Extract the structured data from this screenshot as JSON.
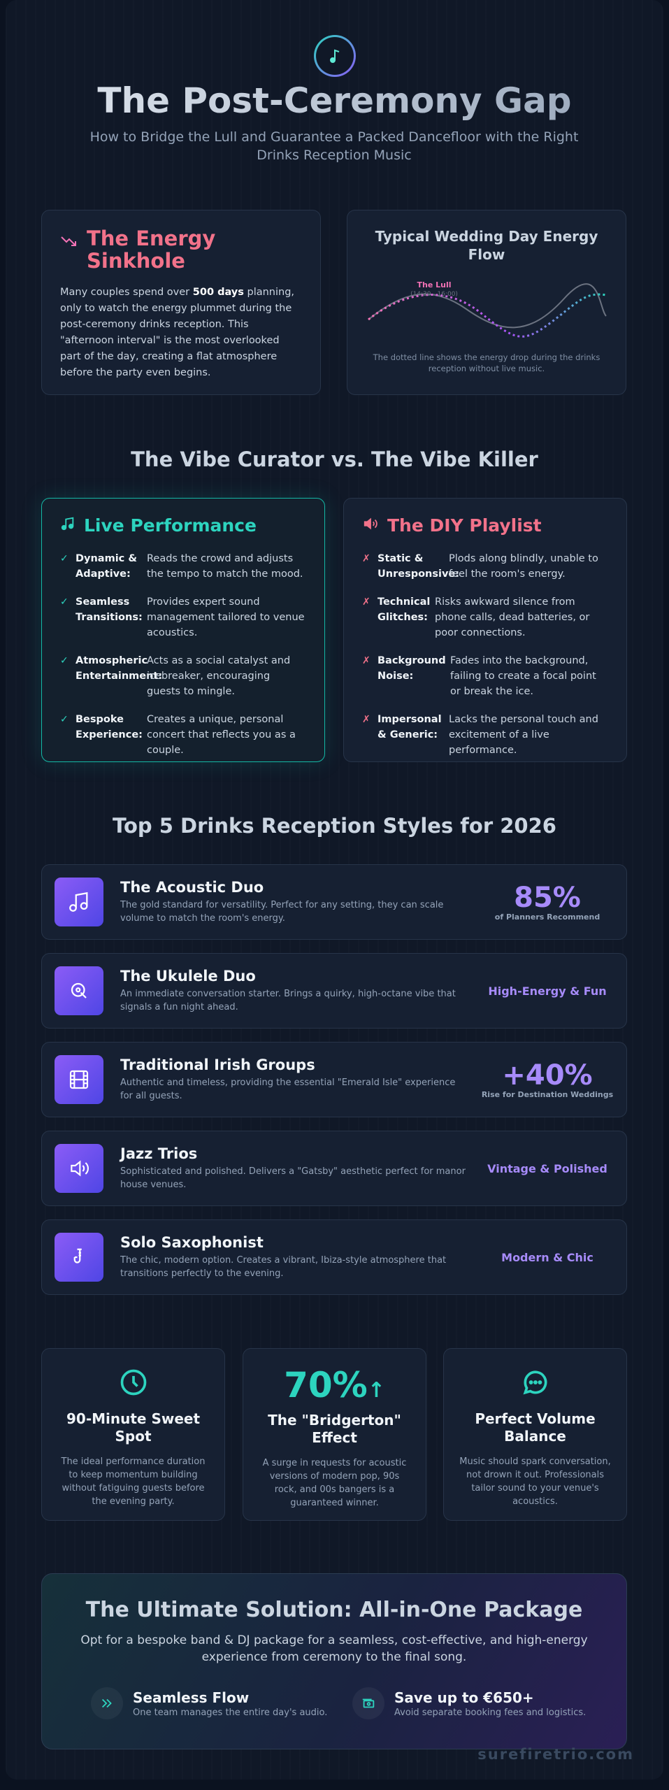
{
  "hero": {
    "icon": "music-note-icon",
    "title": "The Post-Ceremony Gap",
    "subtitle": "How to Bridge the Lull and Guarantee a Packed Dancefloor with the Right Drinks Reception Music"
  },
  "energy": {
    "icon": "trending-down-icon",
    "title": "The Energy Sinkhole",
    "body_pre": "Many couples spend over ",
    "body_bold": "500 days",
    "body_post": " planning, only to watch the energy plummet during the post-ceremony drinks reception. This \"afternoon interval\" is the most overlooked part of the day, creating a flat atmosphere before the party even begins."
  },
  "flow": {
    "title": "Typical Wedding Day Energy Flow",
    "lull_label": "The Lull",
    "lull_time": "(14:30 - 16:00)",
    "caption": "The dotted line shows the energy drop during the drinks reception without live music."
  },
  "vs": {
    "title": "The Vibe Curator vs. The Vibe Killer",
    "live": {
      "icon": "music-notes-icon",
      "title": "Live Performance",
      "items": [
        {
          "label": "Dynamic & Adaptive:",
          "text": "Reads the crowd and adjusts the tempo to match the mood."
        },
        {
          "label": "Seamless Transitions:",
          "text": "Provides expert sound management tailored to venue acoustics."
        },
        {
          "label": "Atmospheric Entertainment:",
          "text": "Acts as a social catalyst and icebreaker, encouraging guests to mingle."
        },
        {
          "label": "Bespoke Experience:",
          "text": "Creates a unique, personal concert that reflects you as a couple."
        }
      ]
    },
    "diy": {
      "icon": "speaker-icon",
      "title": "The DIY Playlist",
      "items": [
        {
          "label": "Static & Unresponsive:",
          "text": "Plods along blindly, unable to feel the room's energy."
        },
        {
          "label": "Technical Glitches:",
          "text": "Risks awkward silence from phone calls, dead batteries, or poor connections."
        },
        {
          "label": "Background Noise:",
          "text": "Fades into the background, failing to create a focal point or break the ice."
        },
        {
          "label": "Impersonal & Generic:",
          "text": "Lacks the personal touch and excitement of a live performance."
        }
      ]
    }
  },
  "styles": {
    "title": "Top 5 Drinks Reception Styles for 2026",
    "items": [
      {
        "icon": "music-note-icon",
        "name": "The Acoustic Duo",
        "desc": "The gold standard for versatility. Perfect for any setting, they can scale volume to match the room's energy.",
        "stat": "85%",
        "stat_label": "of Planners Recommend"
      },
      {
        "icon": "ukulele-icon",
        "name": "The Ukulele Duo",
        "desc": "An immediate conversation starter. Brings a quirky, high-octane vibe that signals a fun night ahead.",
        "tag": "High-Energy & Fun"
      },
      {
        "icon": "film-icon",
        "name": "Traditional Irish Groups",
        "desc": "Authentic and timeless, providing the essential \"Emerald Isle\" experience for all guests.",
        "stat": "+40%",
        "stat_label": "Rise for Destination Weddings"
      },
      {
        "icon": "speaker-icon",
        "name": "Jazz Trios",
        "desc": "Sophisticated and polished. Delivers a \"Gatsby\" aesthetic perfect for manor house venues.",
        "tag": "Vintage & Polished"
      },
      {
        "icon": "saxophone-icon",
        "name": "Solo Saxophonist",
        "desc": "The chic, modern option. Creates a vibrant, Ibiza-style atmosphere that transitions perfectly to the evening.",
        "tag": "Modern & Chic"
      }
    ]
  },
  "stats": [
    {
      "icon": "clock-icon",
      "title": "90-Minute Sweet Spot",
      "desc": "The ideal performance duration to keep momentum building without fatiguing guests before the evening party."
    },
    {
      "pct": "70%",
      "arrow": "↑",
      "title": "The \"Bridgerton\" Effect",
      "desc": "A surge in requests for acoustic versions of modern pop, 90s rock, and 00s bangers is a guaranteed winner."
    },
    {
      "icon": "chat-bubble-icon",
      "title": "Perfect Volume Balance",
      "desc": "Music should spark conversation, not drown it out. Professionals tailor sound to your venue's acoustics."
    }
  ],
  "solution": {
    "title_a": "The Ultimate Solution:",
    "title_b": "All-in-One Package",
    "subtitle": "Opt for a bespoke band & DJ package for a seamless, cost-effective, and high-energy experience from ceremony to the final song.",
    "features": [
      {
        "icon": "double-chevron-icon",
        "title": "Seamless Flow",
        "desc": "One team manages the entire day's audio."
      },
      {
        "icon": "money-icon",
        "title": "Save up to €650+",
        "desc": "Avoid separate booking fees and logistics."
      }
    ]
  },
  "brand": "surefiretrio.com"
}
